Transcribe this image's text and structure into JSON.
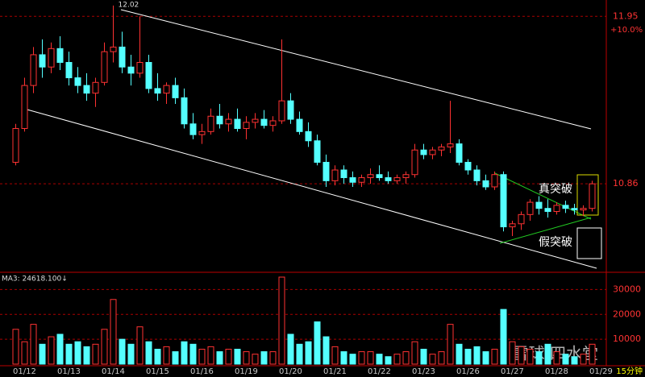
{
  "chart_data": [
    {
      "type": "candlestick",
      "categories": [
        "01/12",
        null,
        null,
        null,
        null,
        "01/13",
        null,
        null,
        null,
        null,
        "01/14",
        null,
        null,
        null,
        null,
        "01/15",
        null,
        null,
        null,
        null,
        "01/16",
        null,
        null,
        null,
        null,
        "01/19",
        null,
        null,
        null,
        null,
        "01/20",
        null,
        null,
        null,
        null,
        "01/21",
        null,
        null,
        null,
        null,
        "01/22",
        null,
        null,
        null,
        null,
        "01/23",
        null,
        null,
        null,
        null,
        "01/26",
        null,
        null,
        null,
        null,
        "01/27",
        null,
        null,
        null,
        null,
        "01/28",
        null,
        null,
        null,
        null,
        "01/29"
      ],
      "open": [
        11.0,
        11.22,
        11.5,
        11.7,
        11.62,
        11.74,
        11.65,
        11.55,
        11.5,
        11.45,
        11.52,
        11.72,
        11.75,
        11.62,
        11.58,
        11.65,
        11.48,
        11.45,
        11.5,
        11.42,
        11.25,
        11.18,
        11.2,
        11.3,
        11.25,
        11.28,
        11.22,
        11.26,
        11.28,
        11.24,
        11.27,
        11.4,
        11.28,
        11.2,
        11.14,
        11.0,
        10.88,
        10.95,
        10.9,
        10.87,
        10.9,
        10.92,
        10.9,
        10.88,
        10.9,
        10.92,
        11.08,
        11.05,
        11.08,
        11.1,
        11.12,
        11.0,
        10.95,
        10.88,
        10.84,
        10.92,
        10.58,
        10.6,
        10.66,
        10.74,
        10.7,
        10.68,
        10.72,
        10.7,
        10.69,
        10.7
      ],
      "high": [
        11.25,
        11.55,
        11.75,
        11.8,
        11.78,
        11.82,
        11.72,
        11.62,
        11.58,
        11.55,
        11.78,
        12.02,
        11.85,
        11.7,
        11.95,
        11.7,
        11.58,
        11.52,
        11.55,
        11.48,
        11.32,
        11.25,
        11.35,
        11.38,
        11.32,
        11.35,
        11.3,
        11.32,
        11.34,
        11.3,
        11.8,
        11.45,
        11.33,
        11.26,
        11.18,
        11.05,
        10.98,
        10.98,
        10.94,
        10.92,
        10.96,
        10.98,
        10.94,
        10.92,
        10.94,
        11.12,
        11.12,
        11.1,
        11.12,
        11.4,
        11.15,
        11.02,
        10.98,
        10.92,
        10.94,
        10.94,
        10.62,
        10.68,
        10.76,
        10.78,
        10.76,
        10.74,
        10.75,
        10.73,
        10.72,
        10.88
      ],
      "low": [
        10.98,
        11.2,
        11.45,
        11.55,
        11.58,
        11.6,
        11.5,
        11.45,
        11.4,
        11.36,
        11.5,
        11.65,
        11.58,
        11.5,
        11.55,
        11.45,
        11.4,
        11.38,
        11.38,
        11.22,
        11.15,
        11.12,
        11.18,
        11.22,
        11.2,
        11.2,
        11.15,
        11.22,
        11.22,
        11.2,
        11.25,
        11.25,
        11.18,
        11.1,
        10.98,
        10.84,
        10.85,
        10.86,
        10.84,
        10.84,
        10.86,
        10.88,
        10.86,
        10.86,
        10.86,
        10.9,
        11.02,
        11.02,
        11.04,
        11.06,
        10.98,
        10.92,
        10.85,
        10.82,
        10.82,
        10.55,
        10.52,
        10.56,
        10.62,
        10.66,
        10.64,
        10.66,
        10.67,
        10.66,
        10.65,
        10.68
      ],
      "close": [
        11.22,
        11.5,
        11.7,
        11.62,
        11.74,
        11.65,
        11.55,
        11.5,
        11.45,
        11.52,
        11.72,
        11.75,
        11.62,
        11.58,
        11.65,
        11.48,
        11.45,
        11.5,
        11.42,
        11.25,
        11.18,
        11.2,
        11.3,
        11.25,
        11.28,
        11.22,
        11.26,
        11.28,
        11.24,
        11.27,
        11.4,
        11.28,
        11.2,
        11.14,
        11.0,
        10.88,
        10.95,
        10.9,
        10.87,
        10.9,
        10.92,
        10.9,
        10.88,
        10.9,
        10.92,
        11.08,
        11.05,
        11.08,
        11.1,
        11.12,
        11.0,
        10.95,
        10.88,
        10.84,
        10.92,
        10.58,
        10.6,
        10.66,
        10.74,
        10.7,
        10.68,
        10.72,
        10.7,
        10.69,
        10.7,
        10.86
      ],
      "up_color": "#ff3232",
      "down_color": "#54ffff",
      "ylim": [
        10.3,
        12.03
      ],
      "yticks": [
        11.95,
        10.86
      ],
      "pct_label": "+10.0%",
      "max_label": "12.02",
      "annotations": [
        "真突破",
        "假突破"
      ],
      "period": "15分钟",
      "watermark": "雪球·四水堂"
    },
    {
      "type": "volume",
      "title": "MA3: 24618.100↓",
      "values": [
        14000,
        9000,
        16000,
        8000,
        11000,
        12000,
        8000,
        9000,
        7000,
        8000,
        14000,
        26000,
        10000,
        8000,
        15000,
        9000,
        6000,
        7000,
        5000,
        9000,
        8000,
        6000,
        7000,
        5000,
        6000,
        6000,
        5000,
        4000,
        5000,
        5000,
        35000,
        12000,
        8000,
        9000,
        17000,
        11000,
        7000,
        5000,
        4000,
        5000,
        5000,
        4000,
        3000,
        4000,
        5000,
        9000,
        6000,
        4000,
        5000,
        16000,
        8000,
        6000,
        7000,
        5000,
        6000,
        22000,
        9000,
        7000,
        6000,
        5000,
        8000,
        5000,
        4000,
        3000,
        4000,
        8000
      ],
      "ylim": [
        0,
        35000
      ],
      "yticks": [
        10000,
        20000,
        30000
      ]
    }
  ]
}
